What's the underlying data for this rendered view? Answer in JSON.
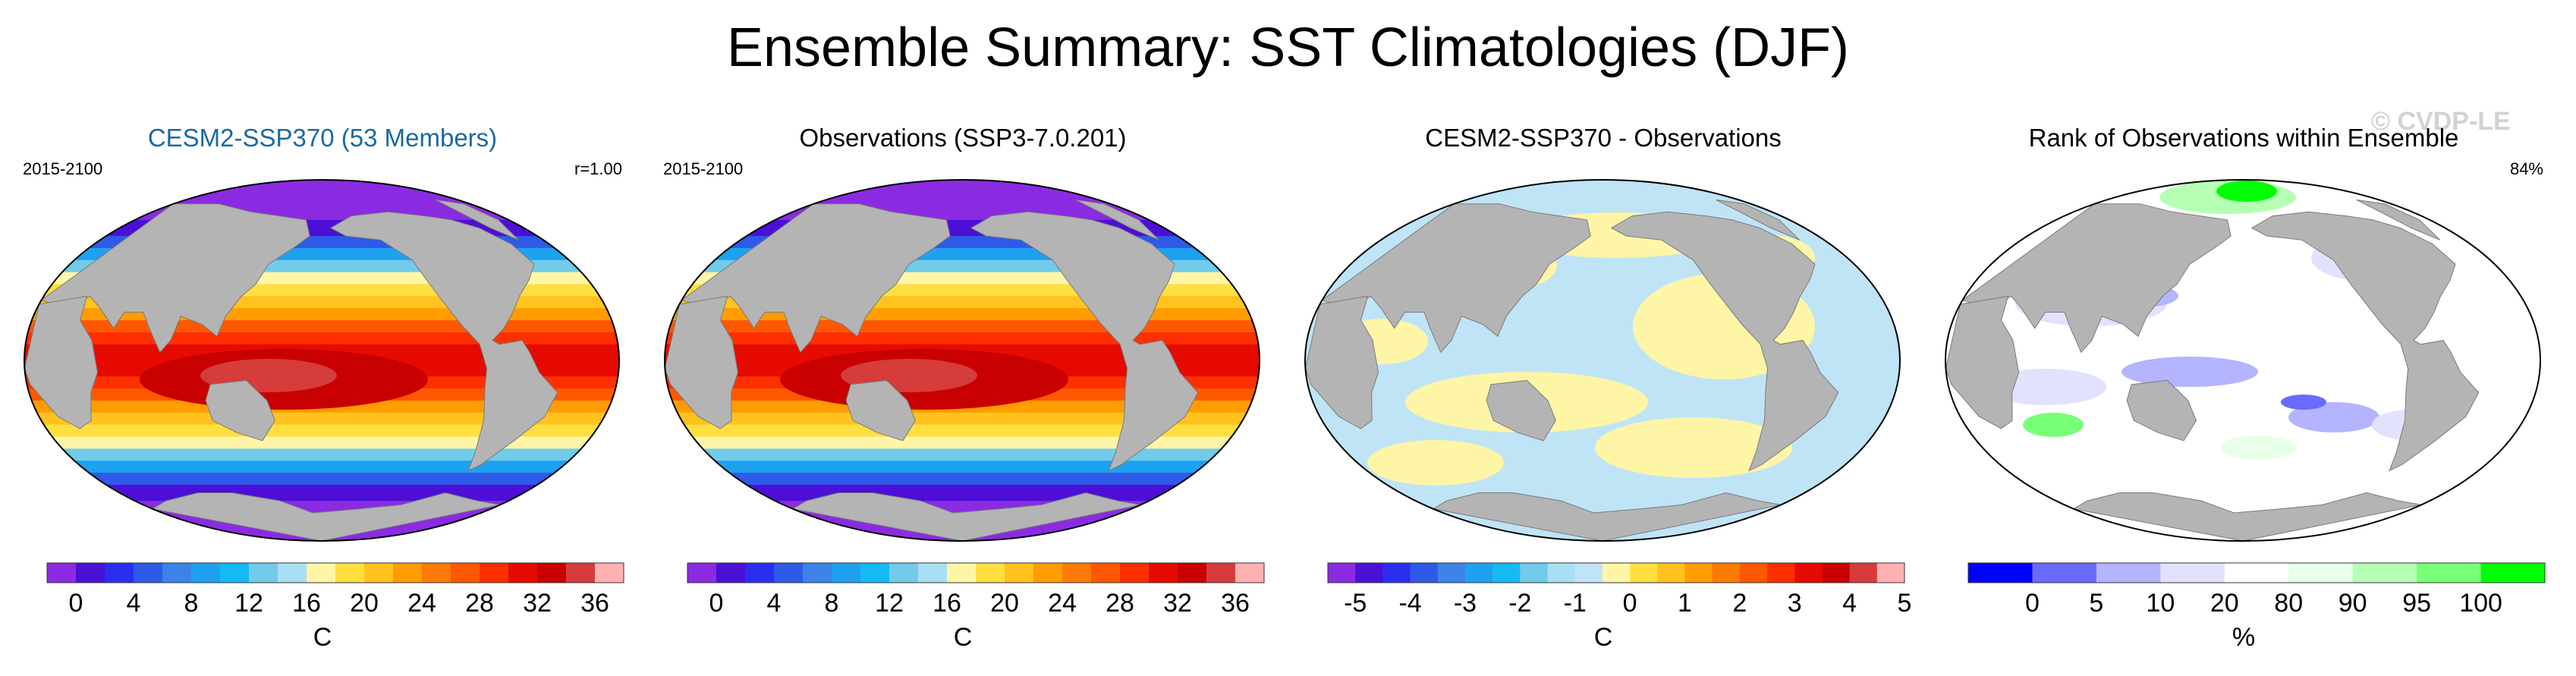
{
  "figure": {
    "title": "Ensemble Summary: SST Climatologies (DJF)",
    "watermark": "© CVDP-LE"
  },
  "colors": {
    "land": "#b4b4b4",
    "sst_palette": [
      "#8a2be2",
      "#4b0fd6",
      "#2a2ef0",
      "#2e5ae8",
      "#3b82ea",
      "#1ea1f0",
      "#14bbf2",
      "#72cbe9",
      "#a8dff5",
      "#fff5a6",
      "#ffdf40",
      "#ffc21e",
      "#ff9c00",
      "#ff7a00",
      "#ff5800",
      "#ff2f00",
      "#e60a00",
      "#c80000",
      "#d63c3c",
      "#ffb1b1"
    ],
    "diff_palette": [
      "#8a2be2",
      "#4b0fd6",
      "#2a2ef0",
      "#2e5ae8",
      "#3b82ea",
      "#1ea1f0",
      "#14bbf2",
      "#72cbe9",
      "#a8dff5",
      "#bfe4f6",
      "#fff5a6",
      "#ffdf40",
      "#ffc21e",
      "#ff9c00",
      "#ff7a00",
      "#ff5800",
      "#ff2f00",
      "#e60a00",
      "#c80000",
      "#d63c3c",
      "#ffb1b1"
    ],
    "rank_palette": [
      "#0000ff",
      "#6a6aff",
      "#b4b4ff",
      "#e2e2ff",
      "#ffffff",
      "#e8ffe8",
      "#b4ffb4",
      "#78ff78",
      "#00ff00"
    ]
  },
  "chart_data": [
    {
      "type": "heatmap",
      "title": "CESM2-SSP370 (53 Members)",
      "title_color": "#1a6aa0",
      "period": "2015-2100",
      "stat": "r=1.00",
      "field": "sst",
      "colorbar": {
        "unit": "C",
        "levels": [
          0,
          2,
          4,
          6,
          8,
          10,
          12,
          14,
          16,
          18,
          20,
          22,
          24,
          26,
          28,
          30,
          32,
          34,
          36
        ],
        "tick_labels": [
          "0",
          "4",
          "8",
          "12",
          "16",
          "20",
          "24",
          "28",
          "32",
          "36"
        ],
        "palette": "sst_palette"
      }
    },
    {
      "type": "heatmap",
      "title": "Observations (SSP3-7.0.201)",
      "title_color": "#000000",
      "period": "2015-2100",
      "stat": "",
      "field": "sst",
      "colorbar": {
        "unit": "C",
        "levels": [
          0,
          2,
          4,
          6,
          8,
          10,
          12,
          14,
          16,
          18,
          20,
          22,
          24,
          26,
          28,
          30,
          32,
          34,
          36
        ],
        "tick_labels": [
          "0",
          "4",
          "8",
          "12",
          "16",
          "20",
          "24",
          "28",
          "32",
          "36"
        ],
        "palette": "sst_palette"
      }
    },
    {
      "type": "heatmap",
      "title": "CESM2-SSP370 - Observations",
      "title_color": "#000000",
      "period": "",
      "stat": "",
      "field": "difference",
      "colorbar": {
        "unit": "C",
        "levels": [
          -5,
          -4.5,
          -4,
          -3.5,
          -3,
          -2.5,
          -2,
          -1.5,
          -1,
          -0.5,
          0,
          0.5,
          1,
          1.5,
          2,
          2.5,
          3,
          3.5,
          4,
          4.5,
          5
        ],
        "tick_labels": [
          "-5",
          "-4",
          "-3",
          "-2",
          "-1",
          "0",
          "1",
          "2",
          "3",
          "4",
          "5"
        ],
        "palette": "diff_palette"
      }
    },
    {
      "type": "heatmap",
      "title": "Rank of Observations within Ensemble",
      "title_color": "#000000",
      "period": "",
      "stat": "84%",
      "field": "rank",
      "colorbar": {
        "unit": "%",
        "levels": [
          0,
          5,
          10,
          20,
          80,
          90,
          95,
          100
        ],
        "tick_labels": [
          "0",
          "5",
          "10",
          "20",
          "80",
          "90",
          "95",
          "100"
        ],
        "palette": "rank_palette"
      }
    }
  ]
}
